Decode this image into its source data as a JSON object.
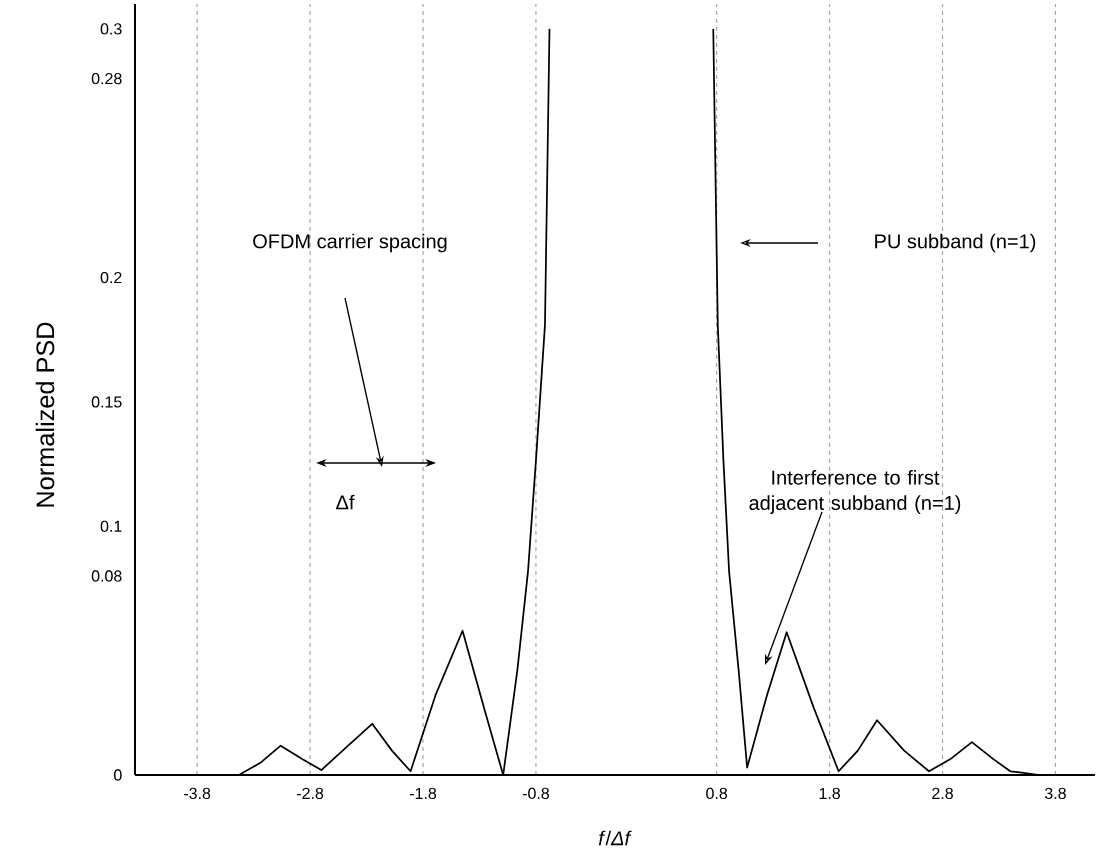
{
  "chart_data": {
    "type": "line",
    "xlabel": "*f*/*Δf*",
    "ylabel": "Normalized PSD",
    "x": [
      -3.8,
      -3.43,
      -3.24,
      -3.06,
      -2.87,
      -2.7,
      -2.475,
      -2.25,
      -2.075,
      -1.91,
      -1.69,
      -1.45,
      -1.26,
      -1.09,
      -0.965,
      -0.87,
      -0.8,
      -0.72,
      -0.68,
      -0.665,
      0.755,
      0.77,
      0.81,
      0.86,
      0.91,
      0.995,
      1.07,
      1.245,
      1.42,
      1.66,
      1.88,
      2.05,
      2.22,
      2.46,
      2.68,
      2.87,
      3.06,
      3.25,
      3.4,
      3.66,
      3.8
    ],
    "values": [
      0,
      0,
      0.0049,
      0.0118,
      0.0064,
      0.002,
      0.0113,
      0.0206,
      0.0098,
      0.0015,
      0.032,
      0.058,
      0.027,
      0,
      0.042,
      0.082,
      0.1265,
      0.181,
      0.3,
      null,
      null,
      0.3,
      0.181,
      0.1265,
      0.082,
      0.042,
      0.003,
      0.032,
      0.0574,
      0.027,
      0.0015,
      0.0098,
      0.022,
      0.0098,
      0.0015,
      0.0064,
      0.0132,
      0.0064,
      0.0015,
      0,
      0
    ],
    "color": "#000000",
    "xlim": [
      -4.35,
      4.15
    ],
    "ylim": [
      0,
      0.31
    ],
    "xticks": [
      -3.8,
      -2.8,
      -1.8,
      -0.8,
      0.8,
      1.8,
      2.8,
      3.8
    ],
    "yticks": [
      0,
      0.08,
      0.1,
      0.15,
      0.2,
      0.28,
      0.3
    ],
    "grid": "x",
    "annotations": [
      "OFDM carrier spacing",
      "Δf",
      "PU subband (n=1)",
      "Interference to first adjacent subband (n=1)"
    ]
  }
}
